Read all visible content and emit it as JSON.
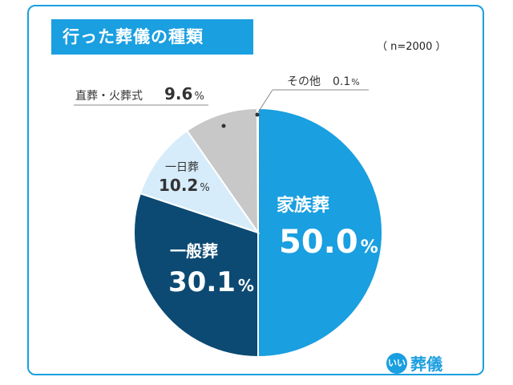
{
  "title": "行った葬儀の種類",
  "sample_note": "（ n=2000 ）",
  "logo": {
    "mark": "いい",
    "text": "葬儀"
  },
  "colors": {
    "accent": "#1a9fe0",
    "family": "#1a9fe0",
    "general": "#0c4a73",
    "oneday": "#d6ecfa",
    "direct": "#c8c8c8",
    "other": "#aaaaaa"
  },
  "chart_data": {
    "type": "pie",
    "title": "行った葬儀の種類",
    "slices": [
      {
        "name": "家族葬",
        "value": 50.0,
        "display": "50.0",
        "unit": "%",
        "color": "#1a9fe0"
      },
      {
        "name": "一般葬",
        "value": 30.1,
        "display": "30.1",
        "unit": "%",
        "color": "#0c4a73"
      },
      {
        "name": "一日葬",
        "value": 10.2,
        "display": "10.2",
        "unit": "%",
        "color": "#d6ecfa"
      },
      {
        "name": "直葬・火葬式",
        "value": 9.6,
        "display": "9.6",
        "unit": "%",
        "color": "#c8c8c8"
      },
      {
        "name": "その他",
        "value": 0.1,
        "display": "0.1",
        "unit": "%",
        "color": "#aaaaaa"
      }
    ]
  }
}
